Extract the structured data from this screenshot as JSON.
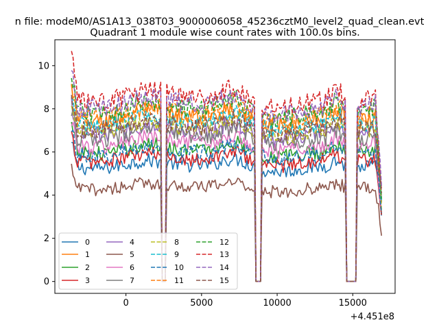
{
  "suptitle": "n file: modeM0/AS1A13_038T03_9000006058_45236cztM0_level2_quad_clean.evt",
  "chart_data": {
    "type": "line",
    "title": "Quadrant 1 module wise count rates with 100.0s bins.",
    "xlabel": "",
    "ylabel": "",
    "x_offset_label": "+4.451e8",
    "xlim": [
      -4700,
      17800
    ],
    "ylim": [
      -0.55,
      11.2
    ],
    "xticks": [
      0,
      5000,
      10000,
      15000
    ],
    "yticks": [
      0,
      2,
      4,
      6,
      8,
      10
    ],
    "grid": false,
    "legend_position": "lower-left",
    "legend_columns": 4,
    "x_start": -3600,
    "x_end": 16900,
    "bin": 100,
    "gaps": [
      [
        2400,
        2600
      ],
      [
        8600,
        8900
      ],
      [
        14600,
        15200
      ]
    ],
    "series": [
      {
        "name": "0",
        "color": "#1f77b4",
        "dash": "solid",
        "level": 5.35
      },
      {
        "name": "1",
        "color": "#ff7f0e",
        "dash": "solid",
        "level": 7.55
      },
      {
        "name": "2",
        "color": "#2ca02c",
        "dash": "solid",
        "level": 6.05
      },
      {
        "name": "3",
        "color": "#d62728",
        "dash": "solid",
        "level": 5.65
      },
      {
        "name": "4",
        "color": "#9467bd",
        "dash": "solid",
        "level": 6.9
      },
      {
        "name": "5",
        "color": "#8c564b",
        "dash": "solid",
        "level": 4.35
      },
      {
        "name": "6",
        "color": "#e377c2",
        "dash": "solid",
        "level": 6.35
      },
      {
        "name": "7",
        "color": "#7f7f7f",
        "dash": "solid",
        "level": 6.7
      },
      {
        "name": "8",
        "color": "#bcbd22",
        "dash": "dashed",
        "level": 7.05
      },
      {
        "name": "9",
        "color": "#17becf",
        "dash": "dashed",
        "level": 7.35
      },
      {
        "name": "10",
        "color": "#1f77b4",
        "dash": "dashed",
        "level": 5.95
      },
      {
        "name": "11",
        "color": "#ff7f0e",
        "dash": "dashed",
        "level": 7.75
      },
      {
        "name": "12",
        "color": "#2ca02c",
        "dash": "dashed",
        "level": 7.95
      },
      {
        "name": "13",
        "color": "#d62728",
        "dash": "dashed",
        "level": 8.45
      },
      {
        "name": "14",
        "color": "#9467bd",
        "dash": "dashed",
        "level": 8.15
      },
      {
        "name": "15",
        "color": "#8c564b",
        "dash": "dashed",
        "level": 7.15
      }
    ]
  }
}
